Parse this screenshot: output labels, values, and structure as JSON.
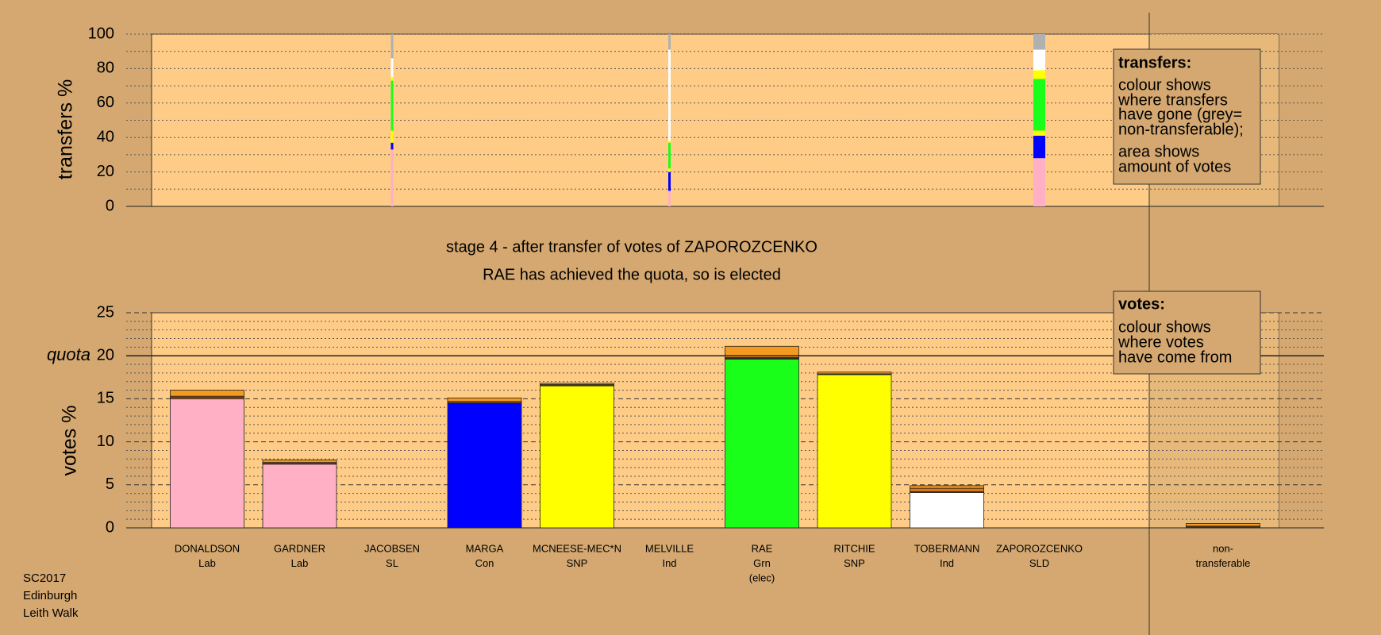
{
  "chart_data": [
    {
      "type": "stacked-bar",
      "ylabel": "transfers %",
      "ylim": [
        0,
        100
      ],
      "yticks": [
        0,
        20,
        40,
        60,
        80,
        100
      ],
      "minor_yticks": [
        10,
        30,
        50,
        70,
        90
      ],
      "grid": true,
      "widths": [
        null,
        null,
        0.3,
        null,
        null,
        0.3,
        null,
        null,
        null,
        1.5,
        null
      ],
      "series": [
        {
          "color": "#ffb0c4",
          "values": [
            null,
            null,
            20,
            null,
            null,
            5,
            null,
            null,
            null,
            15,
            null
          ]
        },
        {
          "color": "#ffb0c4",
          "values": [
            null,
            null,
            13,
            null,
            null,
            4,
            null,
            null,
            null,
            13,
            null
          ]
        },
        {
          "color": "#0000ff",
          "values": [
            null,
            null,
            4,
            null,
            null,
            11,
            null,
            null,
            null,
            13,
            null
          ]
        },
        {
          "color": "#ffff00",
          "values": [
            null,
            null,
            7,
            null,
            null,
            2,
            null,
            null,
            null,
            3,
            null
          ]
        },
        {
          "color": "#1aff1a",
          "values": [
            null,
            null,
            29,
            null,
            null,
            15,
            null,
            null,
            null,
            30,
            null
          ]
        },
        {
          "color": "#ffff00",
          "values": [
            null,
            null,
            2,
            null,
            null,
            1,
            null,
            null,
            null,
            5,
            null
          ]
        },
        {
          "color": "#ffffff",
          "values": [
            null,
            null,
            11,
            null,
            null,
            53,
            null,
            null,
            null,
            12,
            null
          ]
        },
        {
          "color": "#b0b0b0",
          "values": [
            null,
            null,
            14,
            null,
            null,
            9,
            null,
            null,
            null,
            9,
            null
          ]
        }
      ]
    },
    {
      "type": "stacked-bar",
      "title": "stage 4 - after transfer of votes of ZAPOROZCENKO",
      "subtitle": "RAE has achieved the quota, so is elected",
      "ylabel": "votes %",
      "ylim": [
        0,
        25
      ],
      "yticks": [
        0,
        5,
        10,
        15,
        20,
        25
      ],
      "minor_yticks": [
        1,
        2,
        3,
        4,
        6,
        7,
        8,
        9,
        11,
        12,
        13,
        14,
        16,
        17,
        18,
        19,
        21,
        22,
        23,
        24
      ],
      "grid": true,
      "quota": {
        "label": "quota",
        "value": 20
      },
      "categories": [
        [
          "DONALDSON",
          "Lab"
        ],
        [
          "GARDNER",
          "Lab"
        ],
        [
          "JACOBSEN",
          "SL"
        ],
        [
          "MARGA",
          "Con"
        ],
        [
          "MCNEESE-MEC*N",
          "SNP"
        ],
        [
          "MELVILLE",
          "Ind"
        ],
        [
          "RAE",
          "Grn",
          "(elec)"
        ],
        [
          "RITCHIE",
          "SNP"
        ],
        [
          "TOBERMANN",
          "Ind"
        ],
        [
          "ZAPOROZCENKO",
          "SLD"
        ],
        [
          "non-",
          "transferable"
        ]
      ],
      "series": [
        {
          "colors": [
            "#ffb0c4",
            "#ffb0c4",
            null,
            "#0000ff",
            "#ffff00",
            null,
            "#1aff1a",
            "#ffff00",
            "#ffffff",
            null,
            null
          ],
          "values": [
            15.0,
            7.4,
            null,
            14.5,
            16.5,
            null,
            19.6,
            17.8,
            4.1,
            null,
            null
          ]
        },
        {
          "color": "#b85a10",
          "values": [
            0.2,
            0.1,
            null,
            0.05,
            0.1,
            null,
            0.1,
            0.05,
            0.1,
            null,
            0.1
          ]
        },
        {
          "color": "#d87818",
          "values": [
            0.1,
            0.1,
            null,
            0.15,
            0.05,
            null,
            0.1,
            0.05,
            0.4,
            null,
            0.1
          ]
        },
        {
          "color": "#f59a20",
          "values": [
            0.7,
            0.3,
            null,
            0.4,
            0.15,
            null,
            1.3,
            0.2,
            0.3,
            null,
            0.3
          ]
        }
      ]
    }
  ],
  "legends": [
    {
      "heading": "transfers:",
      "lines": [
        "colour shows",
        "where transfers",
        "have gone (grey=",
        "non-transferable);",
        "area shows",
        "amount of votes"
      ]
    },
    {
      "heading": "votes:",
      "lines": [
        "colour shows",
        "where votes",
        "have come from"
      ]
    }
  ],
  "footer": [
    "SC2017",
    "Edinburgh",
    "Leith Walk"
  ]
}
